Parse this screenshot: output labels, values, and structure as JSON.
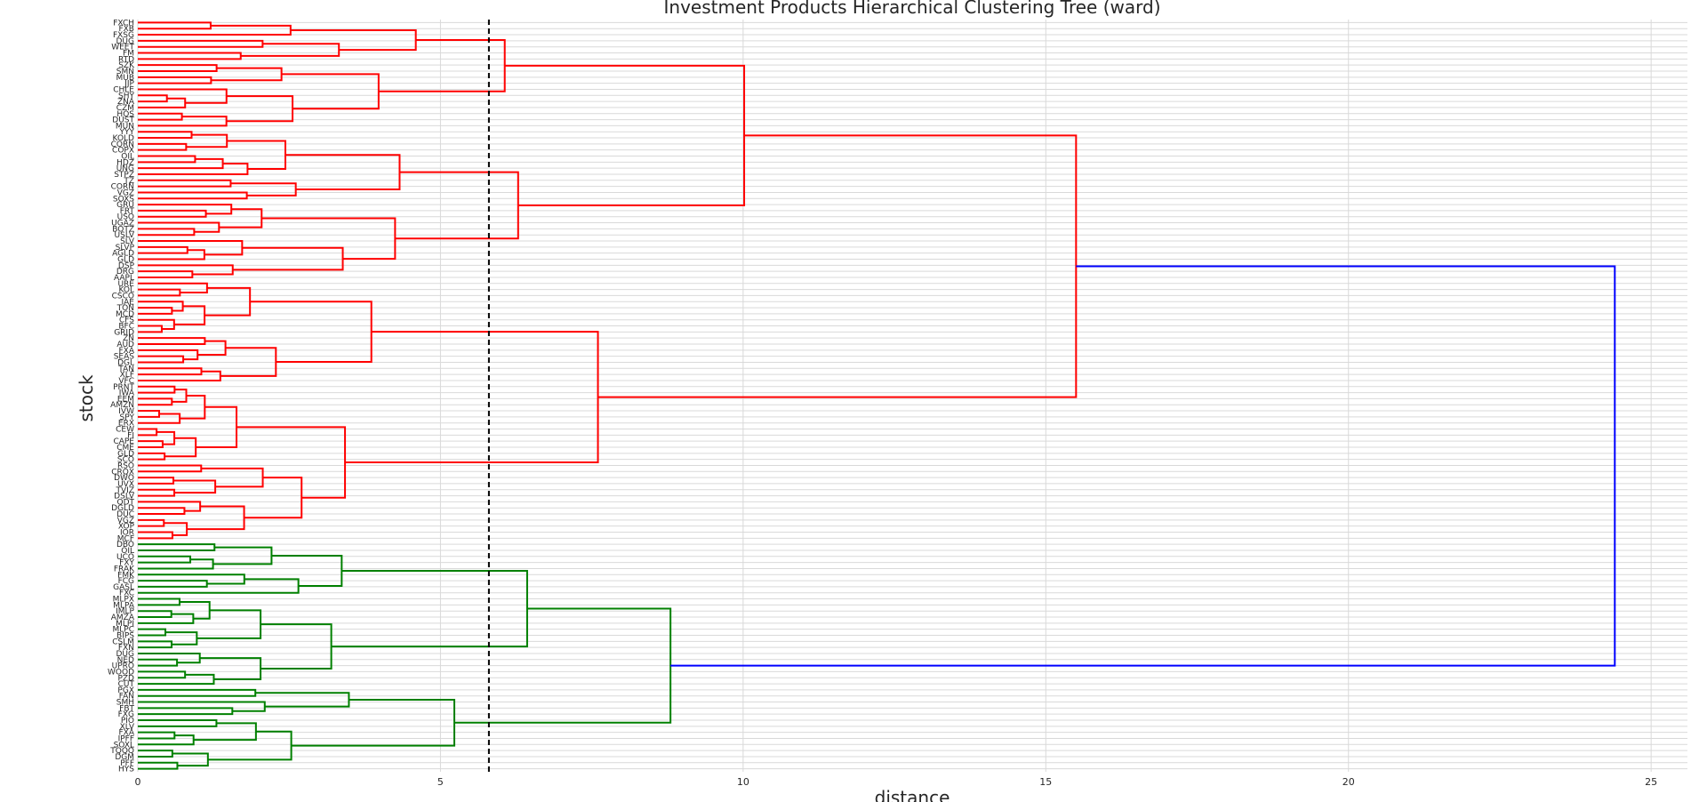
{
  "chart_data": {
    "type": "dendrogram",
    "title": "Investment Products Hierarchical Clustering Tree (ward)",
    "xlabel": "distance",
    "ylabel": "stock",
    "xlim": [
      0,
      25.6
    ],
    "xticks": [
      0,
      5,
      10,
      15,
      20,
      25
    ],
    "grid": true,
    "threshold": 5.8,
    "colors": {
      "cluster_a": "#ff0000",
      "cluster_b": "#008000",
      "root": "#0000ff",
      "threshold": "#000000",
      "grid": "#d9d9d9"
    },
    "leaves": [
      "FXCH",
      "FXB",
      "FXSG",
      "DUG",
      "WEET",
      "FM",
      "RTD",
      "SZK",
      "SMN",
      "MUB",
      "JJP",
      "CHLE",
      "SHY",
      "ZNA",
      "CZM",
      "HOS",
      "DUST",
      "MUN",
      "YYY",
      "KOLD",
      "CORN",
      "COPX",
      "OIL",
      "HDZ",
      "UNG",
      "STPZ",
      "TZ",
      "CORN",
      "VGZ",
      "SOXS",
      "GRU",
      "FRT",
      "USO",
      "UGAZ",
      "BOTZ",
      "USLV",
      "SLV",
      "SLVP",
      "AGLD",
      "GLD",
      "DSP",
      "DRG",
      "AAPL",
      "URE",
      "KOL",
      "CSCO",
      "IAE",
      "TON",
      "MCD",
      "CFS",
      "BFC",
      "GRID",
      "ZN",
      "AUD",
      "FXA",
      "SEAS",
      "DGL",
      "TAN",
      "XLF",
      "VFC",
      "PRNT",
      "IWA",
      "EEM",
      "AMZN",
      "IVW",
      "SPY",
      "ERX",
      "CEW",
      "FI",
      "CAPE",
      "CME",
      "GLD",
      "SCO",
      "RSO",
      "CRQX",
      "DWO",
      "UVX",
      "TVIZ",
      "DSLV",
      "QDT",
      "DGLD",
      "DUC",
      "VGZ",
      "XOP",
      "IOR",
      "MCF",
      "DBO",
      "OIL",
      "UCO",
      "FXY",
      "FRAK",
      "FMK",
      "FCG",
      "GASL",
      "FXC",
      "MLPX",
      "MLPA",
      "IMLP",
      "AMZA",
      "MLPI",
      "MLPC",
      "BIPS",
      "CSLM",
      "FXN",
      "DUG",
      "NED",
      "UPRO",
      "WOOD",
      "PZD",
      "CUT",
      "PGX",
      "FAN",
      "SMH",
      "FBT",
      "FXG",
      "PIO",
      "XLV",
      "FXA",
      "IPFF",
      "SOXL",
      "TQQQ",
      "DGM",
      "PFF",
      "HYS"
    ],
    "links": [
      {
        "x_left": 5.4,
        "x_right": 5.4,
        "x_join": 5.4,
        "cluster": "a"
      }
    ]
  }
}
